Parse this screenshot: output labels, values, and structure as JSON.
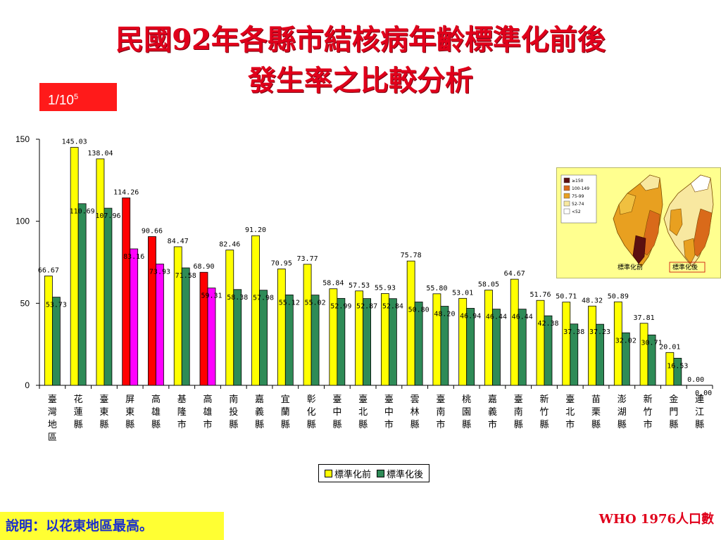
{
  "title_line1": "民國92年各縣市結核病年齡標準化前後",
  "title_line2": "發生率之比較分析",
  "unit_label": {
    "base": "1/10",
    "exp": "5"
  },
  "note": "說明：以花東地區最高。",
  "source": "WHO 1976人口數",
  "map_legend": {
    "items": [
      "≥150",
      "100-149",
      "75-99",
      "52-74",
      "<52"
    ],
    "colors": [
      "#5c1010",
      "#d96a1a",
      "#e8a020",
      "#f8e8a0",
      "#ffffff"
    ],
    "label_before": "標準化前",
    "label_after": "標準化後"
  },
  "colors": {
    "before_default": "#ffff00",
    "after_default": "#2e8b57",
    "before_highlight": "#ff0000",
    "after_highlight": "#ff00ff",
    "title": "#e0001b"
  },
  "chart_data": {
    "type": "bar",
    "categories": [
      "臺灣地區",
      "花蓮縣",
      "臺東縣",
      "屏東縣",
      "高雄縣",
      "基隆市",
      "高雄市",
      "南投縣",
      "嘉義縣",
      "宜蘭縣",
      "彰化縣",
      "臺中縣",
      "臺北縣",
      "臺中市",
      "雲林縣",
      "臺南市",
      "桃園縣",
      "嘉義市",
      "臺南縣",
      "新竹縣",
      "臺北市",
      "苗栗縣",
      "澎湖縣",
      "新竹市",
      "金門縣",
      "連江縣"
    ],
    "series": [
      {
        "name": "標準化前",
        "values": [
          66.67,
          145.03,
          138.04,
          114.26,
          90.66,
          84.47,
          68.9,
          82.46,
          91.2,
          70.95,
          73.77,
          58.84,
          57.53,
          55.93,
          75.78,
          55.8,
          53.01,
          58.05,
          64.67,
          51.76,
          50.71,
          48.32,
          50.89,
          37.81,
          20.01,
          0.0
        ]
      },
      {
        "name": "標準化後",
        "values": [
          53.73,
          110.69,
          107.96,
          83.16,
          73.93,
          71.58,
          59.31,
          58.38,
          57.98,
          55.12,
          55.02,
          52.99,
          52.87,
          52.84,
          50.8,
          48.2,
          46.94,
          46.44,
          46.44,
          42.38,
          37.38,
          37.23,
          32.02,
          30.71,
          16.53,
          0.0
        ]
      }
    ],
    "highlight_categories": [
      "屏東縣",
      "高雄縣",
      "高雄市"
    ],
    "ylim": [
      0,
      150
    ],
    "yticks": [
      "0",
      "50",
      "100",
      "150"
    ],
    "grid": false,
    "legend_position": "bottom-center"
  }
}
